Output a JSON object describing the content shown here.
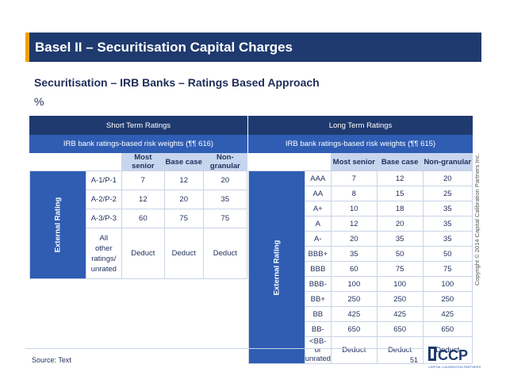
{
  "header": {
    "title": "Basel II – Securitisation Capital Charges"
  },
  "subtitle": "Securitisation – IRB Banks – Ratings Based Approach",
  "unit": "%",
  "short_term": {
    "title": "Short Term Ratings",
    "subheader": "IRB bank ratings-based risk weights (¶¶ 616)",
    "columns": [
      "Most senior",
      "Base case",
      "Non-granular"
    ],
    "side_label": "External Rating",
    "rows": [
      [
        "A-1/P-1",
        "7",
        "12",
        "20"
      ],
      [
        "A-2/P-2",
        "12",
        "20",
        "35"
      ],
      [
        "A-3/P-3",
        "60",
        "75",
        "75"
      ],
      [
        "All other ratings/ unrated",
        "Deduct",
        "Deduct",
        "Deduct"
      ]
    ]
  },
  "long_term": {
    "title": "Long Term Ratings",
    "subheader": "IRB bank ratings-based risk weights (¶¶ 615)",
    "columns": [
      "Most senior",
      "Base case",
      "Non-granular"
    ],
    "side_label": "External Rating",
    "rows": [
      [
        "AAA",
        "7",
        "12",
        "20"
      ],
      [
        "AA",
        "8",
        "15",
        "25"
      ],
      [
        "A+",
        "10",
        "18",
        "35"
      ],
      [
        "A",
        "12",
        "20",
        "35"
      ],
      [
        "A-",
        "20",
        "35",
        "35"
      ],
      [
        "BBB+",
        "35",
        "50",
        "50"
      ],
      [
        "BBB",
        "60",
        "75",
        "75"
      ],
      [
        "BBB-",
        "100",
        "100",
        "100"
      ],
      [
        "BB+",
        "250",
        "250",
        "250"
      ],
      [
        "BB",
        "425",
        "425",
        "425"
      ],
      [
        "BB-",
        "650",
        "650",
        "650"
      ],
      [
        "<BB- or unrated",
        "Deduct",
        "Deduct",
        "Deduct"
      ]
    ]
  },
  "copyright": "Copyright © 2014 Capital Calibration Partners Inc.",
  "footer": {
    "source": "Source: Text",
    "page": "51"
  },
  "logo": {
    "text": "CCP",
    "tagline": "CAPITAL CALIBRATION PARTNERS"
  },
  "colors": {
    "navy": "#1f3a6e",
    "blue": "#2f5db4",
    "light": "#c7d6ee",
    "accent": "#f4a100"
  }
}
